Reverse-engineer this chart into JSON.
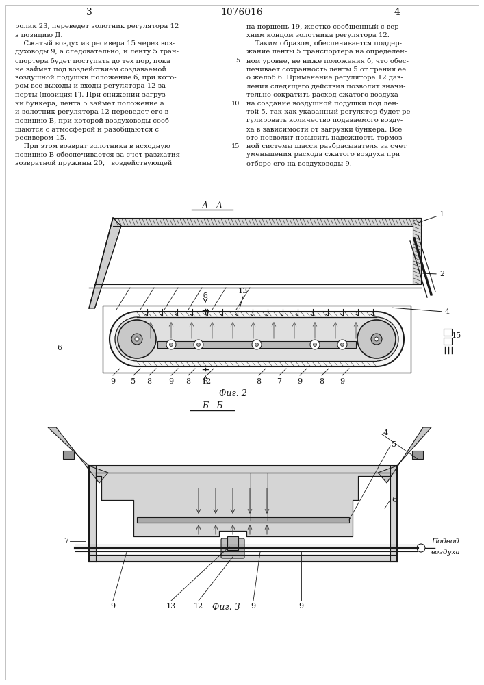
{
  "page_title": "1076016",
  "page_num_left": "3",
  "page_num_right": "4",
  "background_color": "#ffffff",
  "text_color": "#1a1a1a",
  "line_color": "#1a1a1a",
  "left_column_text": [
    "ролик 23, переведет золотник регулятора 12",
    "в позицию Д.",
    "    Сжатый воздух из ресивера 15 через воз-",
    "духоводы 9, а следовательно, и ленту 5 тран-",
    "спортера будет поступать до тех пор, пока",
    "не займет под воздействием создаваемой",
    "воздушной подушки положение б, при кото-",
    "ром все выходы и входы регулятора 12 за-",
    "перты (позиция Г). При снижении загруз-",
    "ки бункера, лента 5 займет положение а",
    "и золотник регулятора 12 переведет его в",
    "позицию В, при которой воздуховоды сооб-",
    "щаются с атмосферой и разобщаются с",
    "ресивером 15.",
    "    При этом возврат золотника в исходную",
    "позицию В обеспечивается за счет разжатия",
    "возвратной пружины 20,   воздействующей"
  ],
  "right_column_text": [
    "на поршень 19, жестко сообщенный с вер-",
    "хним концом золотника регулятора 12.",
    "    Таким образом, обеспечивается поддер-",
    "жание ленты 5 транспортера на определен-",
    "ном уровне, не ниже положения б, что обес-",
    "печивает сохранность ленты 5 от трения ее",
    "о желоб 6. Применение регулятора 12 дав-",
    "ления следящего действия позволит значи-",
    "тельно сократить расход сжатого воздуха",
    "на создание воздушной подушки под лен-",
    "той 5, так как указанный регулятор будет ре-",
    "гулировать количество подаваемого возду-",
    "ха в зависимости от загрузки бункера. Все",
    "это позволит повысить надежность тормоз-",
    "ной системы шасси разбрасывателя за счет",
    "уменьшения расхода сжатого воздуха при",
    "отборе его на воздуховоды 9."
  ]
}
